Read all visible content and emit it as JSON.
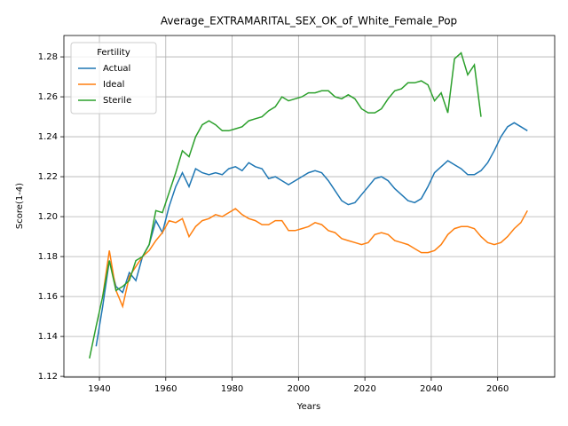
{
  "chart_data": {
    "type": "line",
    "title": "Average_EXTRAMARITAL_SEX_OK_of_White_Female_Pop",
    "x_label": "Years",
    "y_label": "Score(1-4)",
    "legend_title": "Fertility",
    "legend_loc": "upper left",
    "grid": true,
    "xlim": [
      1929.3,
      2077.2
    ],
    "xticks": [
      1940,
      1960,
      1980,
      2000,
      2020,
      2040,
      2060
    ],
    "ylim": [
      1.1196,
      1.2907
    ],
    "yticks": [
      1.12,
      1.14,
      1.16,
      1.18,
      {
        "value": 1.2,
        "label": "1.20"
      },
      1.22,
      1.24,
      1.26,
      1.28
    ],
    "x": [
      1937,
      1939,
      1941,
      1943,
      1945,
      1947,
      1949,
      1951,
      1953,
      1955,
      1957,
      1959,
      1961,
      1963,
      1965,
      1967,
      1969,
      1971,
      1973,
      1975,
      1977,
      1979,
      1981,
      1983,
      1985,
      1987,
      1989,
      1991,
      1993,
      1995,
      1997,
      1999,
      2001,
      2003,
      2005,
      2007,
      2009,
      2011,
      2013,
      2015,
      2017,
      2019,
      2021,
      2023,
      2025,
      2027,
      2029,
      2031,
      2033,
      2035,
      2037,
      2039,
      2041,
      2043,
      2045,
      2047,
      2049,
      2051,
      2053,
      2055,
      2057,
      2059,
      2061,
      2063,
      2065,
      2067,
      2069,
      2071
    ],
    "series": [
      {
        "name": "Actual",
        "color": "#1f77b4",
        "values": [
          null,
          1.135,
          1.155,
          1.178,
          1.165,
          1.162,
          1.172,
          1.168,
          1.18,
          1.186,
          1.198,
          1.192,
          1.205,
          1.215,
          1.222,
          1.215,
          1.224,
          1.222,
          1.221,
          1.222,
          1.221,
          1.224,
          1.225,
          1.223,
          1.227,
          1.225,
          1.224,
          1.219,
          1.22,
          1.218,
          1.216,
          1.218,
          1.22,
          1.222,
          1.223,
          1.222,
          1.218,
          1.213,
          1.208,
          1.206,
          1.207,
          1.211,
          1.215,
          1.219,
          1.22,
          1.218,
          1.214,
          1.211,
          1.208,
          1.207,
          1.209,
          1.215,
          1.222,
          1.225,
          1.228,
          1.226,
          1.224,
          1.221,
          1.221,
          1.223,
          1.227,
          1.233,
          1.24,
          1.245,
          1.247,
          1.245,
          1.243,
          null
        ]
      },
      {
        "name": "Ideal",
        "color": "#ff7f0e",
        "values": [
          null,
          null,
          1.16,
          1.183,
          1.163,
          1.155,
          1.17,
          1.175,
          1.18,
          1.183,
          1.188,
          1.192,
          1.198,
          1.197,
          1.199,
          1.19,
          1.195,
          1.198,
          1.199,
          1.201,
          1.2,
          1.202,
          1.204,
          1.201,
          1.199,
          1.198,
          1.196,
          1.196,
          1.198,
          1.198,
          1.193,
          1.193,
          1.194,
          1.195,
          1.197,
          1.196,
          1.193,
          1.192,
          1.189,
          1.188,
          1.187,
          1.186,
          1.187,
          1.191,
          1.192,
          1.191,
          1.188,
          1.187,
          1.186,
          1.184,
          1.182,
          1.182,
          1.183,
          1.186,
          1.191,
          1.194,
          1.195,
          1.195,
          1.194,
          1.19,
          1.187,
          1.186,
          1.187,
          1.19,
          1.194,
          1.197,
          1.203,
          null
        ]
      },
      {
        "name": "Sterile",
        "color": "#2ca02c",
        "values": [
          1.129,
          1.145,
          1.16,
          1.178,
          1.163,
          1.165,
          1.168,
          1.178,
          1.18,
          1.186,
          1.203,
          1.202,
          1.212,
          1.222,
          1.233,
          1.23,
          1.24,
          1.246,
          1.248,
          1.246,
          1.243,
          1.243,
          1.244,
          1.245,
          1.248,
          1.249,
          1.25,
          1.253,
          1.255,
          1.26,
          1.258,
          1.259,
          1.26,
          1.262,
          1.262,
          1.263,
          1.263,
          1.26,
          1.259,
          1.261,
          1.259,
          1.254,
          1.252,
          1.252,
          1.254,
          1.259,
          1.263,
          1.264,
          1.267,
          1.267,
          1.268,
          1.266,
          1.258,
          1.262,
          1.252,
          1.279,
          1.282,
          1.271,
          1.276,
          1.25,
          null,
          null,
          null,
          null,
          null,
          null,
          null,
          null
        ]
      }
    ]
  }
}
